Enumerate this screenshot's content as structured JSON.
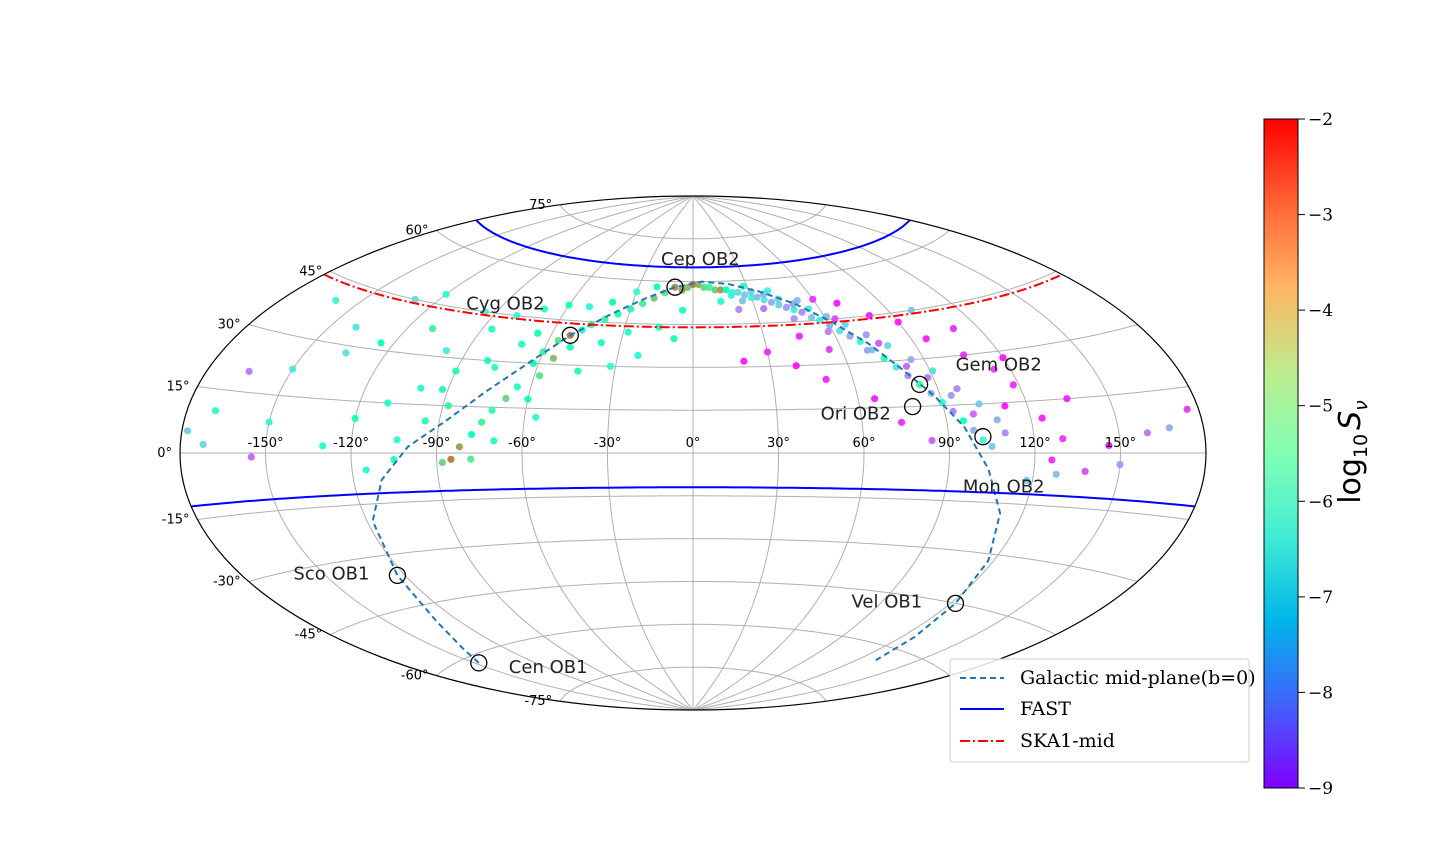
{
  "chart_data": {
    "type": "scatter",
    "projection": "aitoff",
    "xlabel": "",
    "ylabel": "",
    "lon_ticks": [
      -150,
      -120,
      -90,
      -60,
      -30,
      0,
      30,
      60,
      90,
      120,
      150
    ],
    "lon_tick_labels": [
      "-150°",
      "-120°",
      "-90°",
      "-60°",
      "-30°",
      "0°",
      "30°",
      "60°",
      "90°",
      "120°",
      "150°"
    ],
    "lat_ticks": [
      75,
      60,
      45,
      30,
      15,
      0,
      -15,
      -30,
      -45,
      -60,
      -75
    ],
    "lat_tick_labels": [
      "75°",
      "60°",
      "45°",
      "30°",
      "15°",
      "0°",
      "-15°",
      "-30°",
      "-45°",
      "-60°",
      "-75°"
    ],
    "grid": true,
    "colorbar": {
      "label": "log10 Sν",
      "label_base": "log",
      "label_sub": "10",
      "label_sym": "S",
      "label_symsub": "ν",
      "range": [
        -9,
        -2
      ],
      "ticks": [
        -2,
        -3,
        -4,
        -5,
        -6,
        -7,
        -8,
        -9
      ],
      "tick_labels": [
        "−2",
        "−3",
        "−4",
        "−5",
        "−6",
        "−7",
        "−8",
        "−9"
      ],
      "colormap": "rainbow"
    },
    "legend": {
      "placement": "lower-right",
      "entries": [
        {
          "label": "Galactic mid-plane(b=0)",
          "style": "dashed",
          "color": "#1f77b4"
        },
        {
          "label": "FAST",
          "style": "solid",
          "color": "#0000ff"
        },
        {
          "label": "SKA1-mid",
          "style": "dashdot",
          "color": "#ff0000"
        }
      ]
    },
    "lines": {
      "fast_limits_dec": [
        65,
        -12
      ],
      "ska_limit_dec": 44
    },
    "regions": [
      {
        "name": "Cep OB2",
        "lon": -10,
        "lat": 58
      },
      {
        "name": "Cyg OB2",
        "lon": -52,
        "lat": 40
      },
      {
        "name": "Gem OB2",
        "lon": 84,
        "lat": 22
      },
      {
        "name": "Ori OB2",
        "lon": 79,
        "lat": 15
      },
      {
        "name": "Mon OB2",
        "lon": 102,
        "lat": 5
      },
      {
        "name": "Sco OB1",
        "lon": -123,
        "lat": -36
      },
      {
        "name": "Cen OB1",
        "lon": -148,
        "lat": -62
      },
      {
        "name": "Vel OB1",
        "lon": 122,
        "lat": -45
      }
    ],
    "points": [
      [
        -10,
        58,
        -3.2
      ],
      [
        -6,
        57,
        -3.5
      ],
      [
        -3,
        58,
        -3.8
      ],
      [
        0,
        59,
        -3.1
      ],
      [
        3,
        59,
        -3.6
      ],
      [
        6,
        58,
        -4.2
      ],
      [
        9,
        58,
        -5.0
      ],
      [
        12,
        57,
        -4.0
      ],
      [
        15,
        57,
        -3.3
      ],
      [
        18,
        57,
        -5.5
      ],
      [
        21,
        56,
        -6.1
      ],
      [
        24,
        56,
        -6.8
      ],
      [
        27,
        55,
        -7.0
      ],
      [
        30,
        54,
        -6.4
      ],
      [
        33,
        54,
        -7.2
      ],
      [
        36,
        53,
        -6.6
      ],
      [
        39,
        52,
        -7.4
      ],
      [
        42,
        51,
        -6.9
      ],
      [
        45,
        50,
        -7.6
      ],
      [
        48,
        49,
        -6.2
      ],
      [
        51,
        48,
        -7.8
      ],
      [
        54,
        46,
        -7.1
      ],
      [
        57,
        45,
        -6.5
      ],
      [
        60,
        43,
        -7.3
      ],
      [
        63,
        41,
        -6.8
      ],
      [
        66,
        39,
        -7.5
      ],
      [
        69,
        37,
        -6.1
      ],
      [
        72,
        34,
        -7.0
      ],
      [
        75,
        31,
        -5.2
      ],
      [
        78,
        28,
        -6.6
      ],
      [
        81,
        25,
        -7.7
      ],
      [
        84,
        22,
        -4.8
      ],
      [
        87,
        19,
        -7.2
      ],
      [
        90,
        16,
        -6.0
      ],
      [
        93,
        13,
        -7.9
      ],
      [
        96,
        10,
        -5.6
      ],
      [
        99,
        7,
        -7.4
      ],
      [
        102,
        4,
        -6.3
      ],
      [
        105,
        2,
        -7.1
      ],
      [
        20,
        55,
        -6.3
      ],
      [
        25,
        53,
        -7.1
      ],
      [
        31,
        56,
        -6.9
      ],
      [
        37,
        55,
        -7.3
      ],
      [
        43,
        53,
        -6.7
      ],
      [
        49,
        51,
        -7.5
      ],
      [
        55,
        49,
        -6.4
      ],
      [
        61,
        46,
        -7.2
      ],
      [
        67,
        43,
        -6.9
      ],
      [
        73,
        39,
        -7.6
      ],
      [
        79,
        35,
        -6.8
      ],
      [
        85,
        30,
        -7.4
      ],
      [
        91,
        26,
        -6.6
      ],
      [
        97,
        20,
        -7.8
      ],
      [
        103,
        15,
        -7.0
      ],
      [
        108,
        10,
        -7.3
      ],
      [
        14,
        53,
        -6.0
      ],
      [
        22,
        50,
        -7.8
      ],
      [
        34,
        50,
        -8.0
      ],
      [
        46,
        46,
        -7.7
      ],
      [
        58,
        41,
        -7.9
      ],
      [
        70,
        34,
        -7.5
      ],
      [
        82,
        28,
        -8.1
      ],
      [
        94,
        18,
        -7.6
      ],
      [
        100,
        12,
        -8.2
      ],
      [
        110,
        6,
        -7.8
      ],
      [
        76,
        36,
        -8.3
      ],
      [
        88,
        24,
        -8.0
      ],
      [
        64,
        45,
        -8.4
      ],
      [
        52,
        52,
        -7.3
      ],
      [
        40,
        56,
        -6.2
      ],
      [
        28,
        58,
        -5.8
      ],
      [
        112,
        14,
        -8.9
      ],
      [
        118,
        20,
        -8.7
      ],
      [
        124,
        10,
        -8.8
      ],
      [
        130,
        4,
        -8.6
      ],
      [
        120,
        28,
        -8.9
      ],
      [
        135,
        15,
        -8.8
      ],
      [
        106,
        30,
        -8.7
      ],
      [
        114,
        25,
        -8.5
      ],
      [
        96,
        36,
        -8.8
      ],
      [
        90,
        42,
        -8.9
      ],
      [
        70,
        50,
        -8.9
      ],
      [
        60,
        52,
        -8.6
      ],
      [
        80,
        45,
        -8.8
      ],
      [
        126,
        -2,
        -8.7
      ],
      [
        138,
        -5,
        -8.4
      ],
      [
        146,
        2,
        -8.9
      ],
      [
        40,
        30,
        -8.9
      ],
      [
        50,
        25,
        -8.8
      ],
      [
        30,
        35,
        -8.7
      ],
      [
        20,
        32,
        -8.9
      ],
      [
        45,
        40,
        -8.8
      ],
      [
        55,
        35,
        -8.6
      ],
      [
        118,
        -8,
        -7.0
      ],
      [
        150,
        -3,
        -7.6
      ],
      [
        128,
        -6,
        -7.2
      ],
      [
        84,
        4,
        -8.2
      ],
      [
        74,
        10,
        -8.7
      ],
      [
        66,
        18,
        -8.8
      ],
      [
        110,
        38,
        -8.7
      ],
      [
        100,
        45,
        -7.1
      ],
      [
        -52,
        40,
        -3.0
      ],
      [
        -56,
        38,
        -4.4
      ],
      [
        -50,
        36,
        -5.2
      ],
      [
        -60,
        34,
        -4.8
      ],
      [
        -48,
        42,
        -5.6
      ],
      [
        -55,
        32,
        -3.8
      ],
      [
        -62,
        30,
        -5.4
      ],
      [
        -58,
        26,
        -4.6
      ],
      [
        -65,
        22,
        -5.8
      ],
      [
        -68,
        18,
        -4.2
      ],
      [
        -72,
        14,
        -5.0
      ],
      [
        -75,
        10,
        -4.7
      ],
      [
        -78,
        6,
        -5.5
      ],
      [
        -82,
        2,
        -3.4
      ],
      [
        -85,
        -2,
        -3.0
      ],
      [
        -88,
        -3,
        -4.1
      ],
      [
        -45,
        44,
        -5.1
      ],
      [
        -40,
        46,
        -4.9
      ],
      [
        -35,
        48,
        -5.3
      ],
      [
        -30,
        50,
        -5.0
      ],
      [
        -25,
        52,
        -4.5
      ],
      [
        -20,
        54,
        -3.9
      ],
      [
        -15,
        56,
        -4.3
      ],
      [
        -70,
        36,
        -5.7
      ],
      [
        -80,
        30,
        -5.6
      ],
      [
        -90,
        26,
        -5.2
      ],
      [
        -100,
        20,
        -6.0
      ],
      [
        -110,
        15,
        -5.8
      ],
      [
        -120,
        10,
        -5.4
      ],
      [
        -95,
        10,
        -5.1
      ],
      [
        -88,
        15,
        -4.9
      ],
      [
        -92,
        20,
        -5.3
      ],
      [
        -76,
        28,
        -5.9
      ],
      [
        -66,
        40,
        -5.5
      ],
      [
        -38,
        38,
        -5.7
      ],
      [
        -28,
        42,
        -5.8
      ],
      [
        -22,
        34,
        -5.9
      ],
      [
        -15,
        44,
        -5.6
      ],
      [
        -8,
        40,
        -5.4
      ],
      [
        -5,
        50,
        -5.7
      ],
      [
        -32,
        30,
        -6.0
      ],
      [
        -44,
        28,
        -5.3
      ],
      [
        -60,
        18,
        -5.5
      ],
      [
        -56,
        12,
        -6.1
      ],
      [
        -104,
        4,
        -6.0
      ],
      [
        -130,
        2,
        -5.9
      ],
      [
        -150,
        8,
        -6.2
      ],
      [
        -160,
        40,
        -6.3
      ],
      [
        -140,
        35,
        -6.5
      ],
      [
        -125,
        32,
        -5.5
      ],
      [
        -110,
        38,
        -4.8
      ],
      [
        -150,
        22,
        -6.4
      ],
      [
        -170,
        10,
        -6.0
      ],
      [
        -165,
        20,
        -8.0
      ],
      [
        -135,
        28,
        -6.6
      ],
      [
        -98,
        32,
        -6.2
      ],
      [
        -86,
        40,
        -5.8
      ],
      [
        -80,
        45,
        -6.1
      ],
      [
        -70,
        48,
        -5.9
      ],
      [
        -60,
        50,
        -5.4
      ],
      [
        -50,
        50,
        -6.0
      ],
      [
        -40,
        52,
        -5.5
      ],
      [
        -30,
        56,
        -6.2
      ],
      [
        -20,
        58,
        -5.6
      ],
      [
        -95,
        45,
        -6.4
      ],
      [
        -130,
        45,
        -6.8
      ],
      [
        -120,
        48,
        -6.1
      ],
      [
        -115,
        -5,
        -6.0
      ],
      [
        -105,
        -2,
        -5.7
      ],
      [
        -78,
        -2,
        -4.6
      ],
      [
        -70,
        4,
        -5.8
      ],
      [
        176,
        10,
        -8.6
      ],
      [
        168,
        6,
        -7.4
      ],
      [
        160,
        5,
        -8.0
      ],
      [
        -178,
        5,
        -7.0
      ],
      [
        -172,
        2,
        -6.8
      ],
      [
        -155,
        -1,
        -8.2
      ]
    ]
  }
}
